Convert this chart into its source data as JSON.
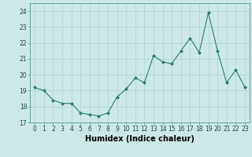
{
  "x": [
    0,
    1,
    2,
    3,
    4,
    5,
    6,
    7,
    8,
    9,
    10,
    11,
    12,
    13,
    14,
    15,
    16,
    17,
    18,
    19,
    20,
    21,
    22,
    23
  ],
  "y": [
    19.2,
    19.0,
    18.4,
    18.2,
    18.2,
    17.6,
    17.5,
    17.4,
    17.6,
    18.6,
    19.1,
    19.8,
    19.5,
    21.2,
    20.8,
    20.7,
    21.5,
    22.3,
    21.4,
    23.9,
    21.5,
    19.5,
    20.3,
    19.2
  ],
  "xlabel": "Humidex (Indice chaleur)",
  "xlim": [
    -0.5,
    23.5
  ],
  "ylim": [
    17,
    24.5
  ],
  "yticks": [
    17,
    18,
    19,
    20,
    21,
    22,
    23,
    24
  ],
  "xticks": [
    0,
    1,
    2,
    3,
    4,
    5,
    6,
    7,
    8,
    9,
    10,
    11,
    12,
    13,
    14,
    15,
    16,
    17,
    18,
    19,
    20,
    21,
    22,
    23
  ],
  "xtick_labels": [
    "0",
    "1",
    "2",
    "3",
    "4",
    "5",
    "6",
    "7",
    "8",
    "9",
    "10",
    "11",
    "12",
    "13",
    "14",
    "15",
    "16",
    "17",
    "18",
    "19",
    "20",
    "21",
    "22",
    "23"
  ],
  "line_color": "#2e7d6e",
  "marker": "D",
  "marker_size": 2.0,
  "bg_color": "#cce9e7",
  "grid_color": "#aad4d1",
  "xlabel_fontsize": 7,
  "tick_fontsize": 5.5,
  "linewidth": 0.8
}
